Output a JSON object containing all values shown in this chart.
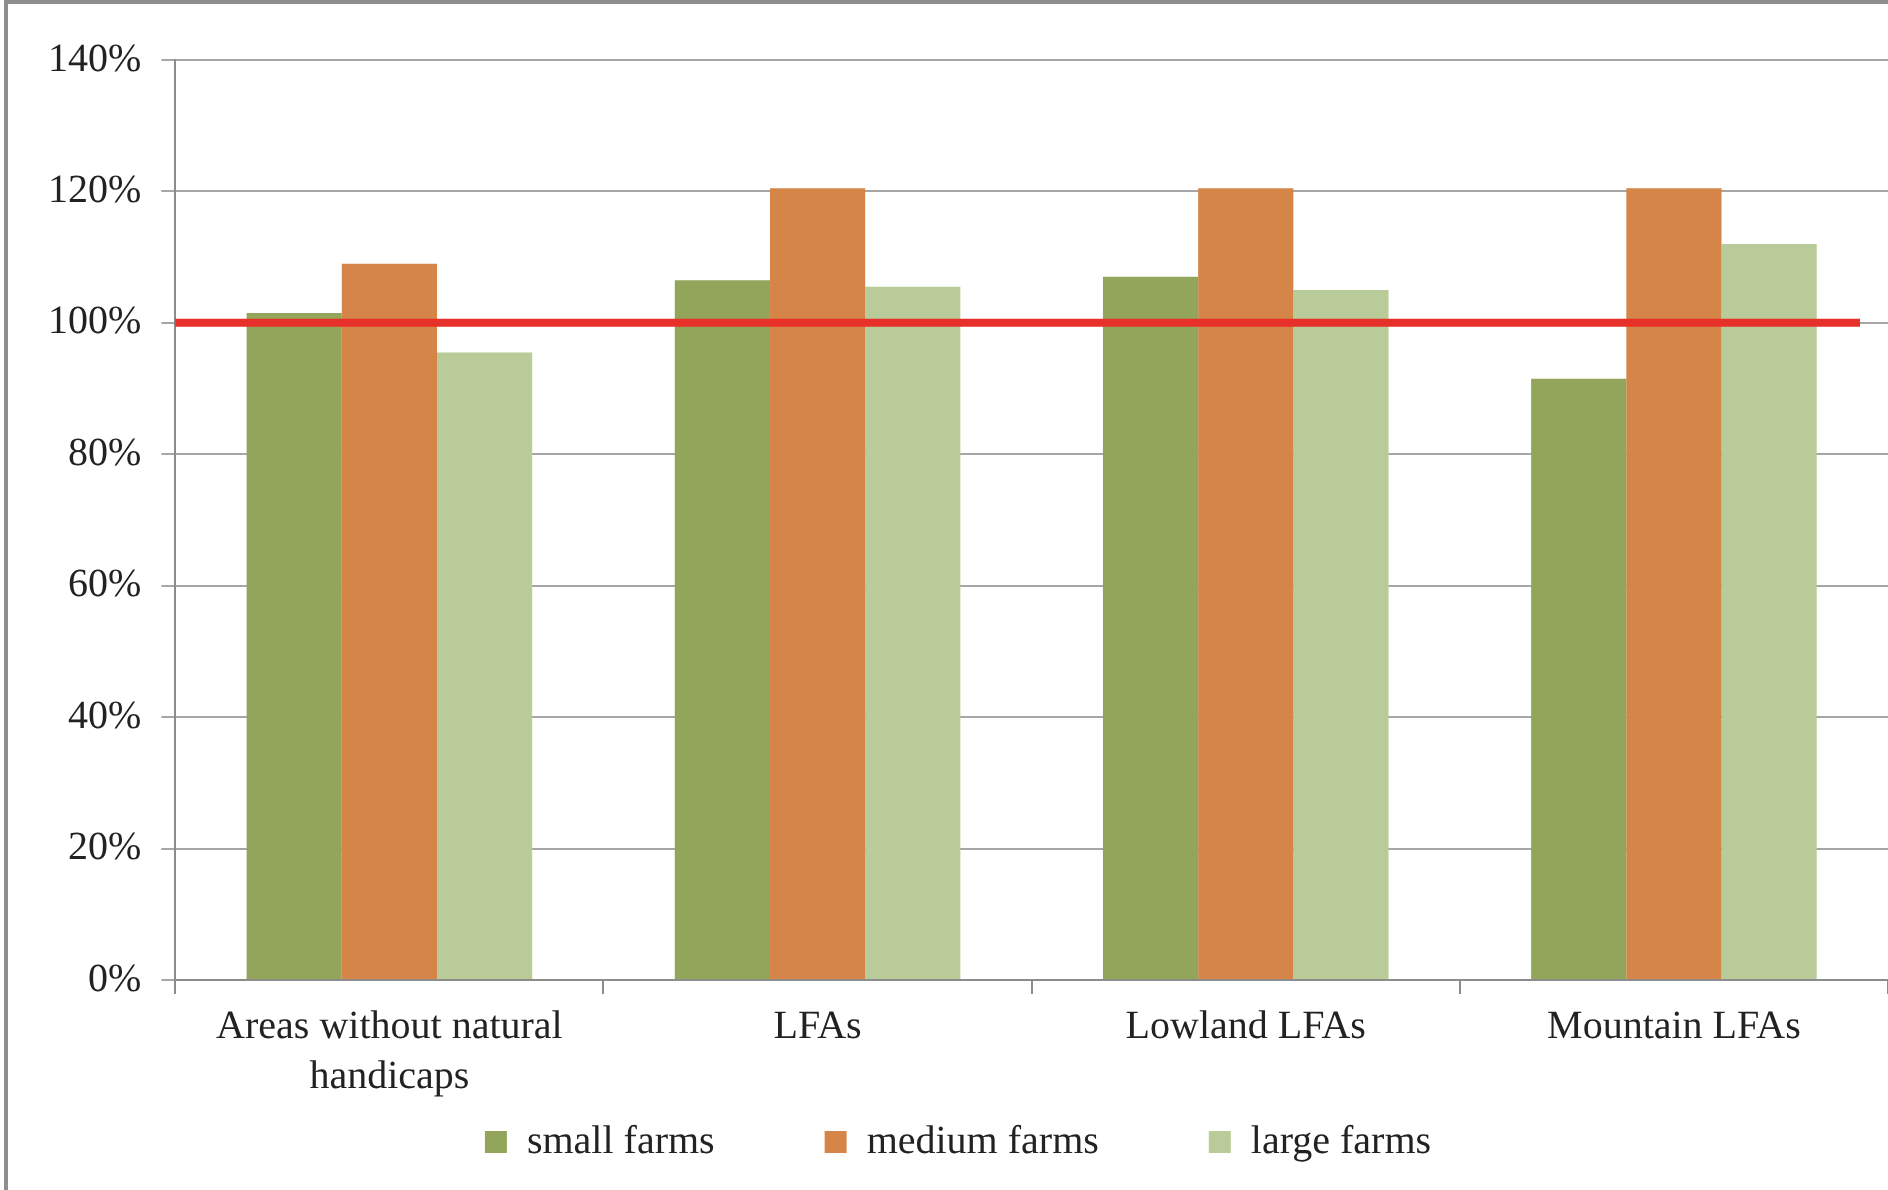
{
  "chart_data": {
    "type": "bar",
    "categories": [
      "Areas without natural handicaps",
      "LFAs",
      "Lowland LFAs",
      "Mountain LFAs"
    ],
    "series": [
      {
        "name": "small farms",
        "color": "#93a55a",
        "values": [
          101.5,
          106.5,
          107,
          91.5
        ]
      },
      {
        "name": "medium farms",
        "color": "#d58548",
        "values": [
          109,
          120.5,
          120.5,
          120.5
        ]
      },
      {
        "name": "large farms",
        "color": "#b9cb98",
        "values": [
          95.5,
          105.5,
          105,
          112
        ]
      }
    ],
    "ylim": [
      0,
      140
    ],
    "yticks": [
      {
        "value": 0,
        "label": "0%"
      },
      {
        "value": 20,
        "label": "20%"
      },
      {
        "value": 40,
        "label": "40%"
      },
      {
        "value": 60,
        "label": "60%"
      },
      {
        "value": 80,
        "label": "80%"
      },
      {
        "value": 100,
        "label": "100%"
      },
      {
        "value": 120,
        "label": "120%"
      },
      {
        "value": 140,
        "label": "140%"
      }
    ],
    "grid": "y",
    "legend": "bottom",
    "ref_lines": [
      {
        "axis": "y",
        "value": 100,
        "color": "#e8302a"
      }
    ]
  }
}
